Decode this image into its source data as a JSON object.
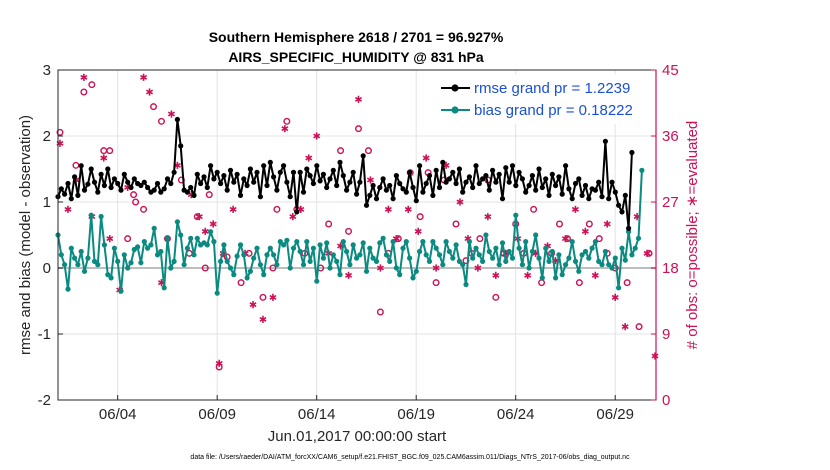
{
  "chart_data": {
    "type": "line",
    "title": "Southern Hemisphere 2618 / 2701 = 96.927%",
    "subtitle": "AIRS_SPECIFIC_HUMIDITY @ 831 hPa",
    "xlabel": "Jun.01,2017 00:00:00 start",
    "ylabel": "rmse and bias (model - observation)",
    "ylabel_right": "# of obs: o=possible; ∗=evaluated",
    "xlim": [
      1.0,
      31.05
    ],
    "ylim": [
      -2,
      3
    ],
    "ylim_right": [
      0,
      45
    ],
    "x_ticks": [
      {
        "value": 4,
        "label": "06/04"
      },
      {
        "value": 9,
        "label": "06/09"
      },
      {
        "value": 14,
        "label": "06/14"
      },
      {
        "value": 19,
        "label": "06/19"
      },
      {
        "value": 24,
        "label": "06/24"
      },
      {
        "value": 29,
        "label": "06/29"
      }
    ],
    "y_ticks": [
      {
        "value": -2,
        "label": "-2"
      },
      {
        "value": -1,
        "label": "-1"
      },
      {
        "value": 0,
        "label": "0"
      },
      {
        "value": 1,
        "label": "1"
      },
      {
        "value": 2,
        "label": "2"
      },
      {
        "value": 3,
        "label": "3"
      }
    ],
    "y_ticks_right": [
      {
        "value": 0,
        "label": "0"
      },
      {
        "value": 9,
        "label": "9"
      },
      {
        "value": 18,
        "label": "18"
      },
      {
        "value": 27,
        "label": "27"
      },
      {
        "value": 36,
        "label": "36"
      },
      {
        "value": 45,
        "label": "45"
      }
    ],
    "legend_position": "top-right",
    "series": [
      {
        "name": "rmse grand pr = 1.2239",
        "color": "#000000",
        "values": [
          1.08,
          1.2,
          1.12,
          1.28,
          1.05,
          1.38,
          1.1,
          1.55,
          1.18,
          1.27,
          1.5,
          1.3,
          1.15,
          1.42,
          1.25,
          1.5,
          1.22,
          1.35,
          1.28,
          1.18,
          1.42,
          1.3,
          1.22,
          1.35,
          1.28,
          1.25,
          1.3,
          1.22,
          1.15,
          1.18,
          1.28,
          1.15,
          1.2,
          1.35,
          1.28,
          1.45,
          2.25,
          1.85,
          1.18,
          1.15,
          1.22,
          1.1,
          1.42,
          1.28,
          1.38,
          1.22,
          1.55,
          1.35,
          1.45,
          1.28,
          1.4,
          1.18,
          1.48,
          1.3,
          1.42,
          1.1,
          1.35,
          1.25,
          1.5,
          1.3,
          1.45,
          1.08,
          1.55,
          1.25,
          1.6,
          1.38,
          1.18,
          1.45,
          1.55,
          1.3,
          1.08,
          1.45,
          0.85,
          1.45,
          1.15,
          1.5,
          1.4,
          1.28,
          1.55,
          1.32,
          1.42,
          1.22,
          1.35,
          1.48,
          1.25,
          1.6,
          1.4,
          1.18,
          1.3,
          1.45,
          1.12,
          1.3,
          1.7,
          0.95,
          1.1,
          1.25,
          1.05,
          1.22,
          1.35,
          1.18,
          1.25,
          1.05,
          1.4,
          1.28,
          1.2,
          1.15,
          1.45,
          1.22,
          1.02,
          1.55,
          1.15,
          1.28,
          1.4,
          1.1,
          1.48,
          1.22,
          1.6,
          1.3,
          1.35,
          1.45,
          1.28,
          1.5,
          1.15,
          1.3,
          1.38,
          1.22,
          1.55,
          1.28,
          1.35,
          1.4,
          1.18,
          1.48,
          1.3,
          1.42,
          1.05,
          1.52,
          1.3,
          1.55,
          1.25,
          1.45,
          1.35,
          1.15,
          1.25,
          1.4,
          1.18,
          1.5,
          1.22,
          1.35,
          1.1,
          1.42,
          1.25,
          1.38,
          1.12,
          1.55,
          1.2,
          1.05,
          1.28,
          1.35,
          1.1,
          1.25,
          1.05,
          1.2,
          1.18,
          1.3,
          1.08,
          1.92,
          1.05,
          1.3,
          1.15,
          0.95,
          0.85,
          1.1,
          0.6,
          1.75
        ],
        "start_x": 1.0,
        "step": 0.1667
      },
      {
        "name": "bias grand pr = 0.18222",
        "color": "#0a8a80",
        "values": [
          0.5,
          0.2,
          0.05,
          -0.32,
          0.3,
          0.15,
          0.05,
          0.25,
          -0.05,
          0.15,
          0.8,
          0.1,
          0.05,
          0.78,
          0.35,
          -0.1,
          -0.15,
          0.3,
          0.1,
          -0.35,
          0.2,
          0.0,
          0.08,
          0.28,
          0.32,
          0.08,
          0.4,
          0.3,
          0.35,
          0.6,
          0.2,
          0.25,
          -0.3,
          0.45,
          0.0,
          0.1,
          0.7,
          0.5,
          0.05,
          0.3,
          0.45,
          0.2,
          0.45,
          0.35,
          0.38,
          0.35,
          0.55,
          0.4,
          -0.38,
          0.1,
          0.35,
          0.1,
          0.0,
          -0.1,
          0.18,
          0.35,
          0.2,
          -0.15,
          -0.05,
          0.15,
          0.3,
          0.05,
          -0.1,
          0.2,
          0.3,
          0.2,
          0.05,
          0.4,
          0.35,
          0.42,
          0.0,
          0.3,
          0.4,
          0.25,
          0.05,
          0.4,
          0.1,
          0.3,
          -0.2,
          0.35,
          0.15,
          0.38,
          0.0,
          0.2,
          0.1,
          -0.1,
          0.4,
          0.25,
          0.05,
          0.35,
          0.15,
          0.2,
          0.38,
          -0.05,
          0.3,
          0.15,
          0.1,
          0.38,
          0.45,
          0.2,
          0.1,
          0.4,
          0.0,
          -0.1,
          0.3,
          0.4,
          0.15,
          -0.15,
          -0.05,
          0.25,
          0.4,
          0.2,
          0.1,
          0.4,
          0.3,
          0.2,
          0.05,
          0.4,
          0.25,
          0.15,
          0.35,
          0.1,
          0.05,
          -0.25,
          0.4,
          0.15,
          0.3,
          0.2,
          0.1,
          0.5,
          0.25,
          0.15,
          0.3,
          0.05,
          0.38,
          0.1,
          0.25,
          0.15,
          0.8,
          0.3,
          0.05,
          0.4,
          0.0,
          0.25,
          0.5,
          0.15,
          -0.15,
          0.3,
          0.1,
          0.25,
          -0.15,
          0.2,
          -0.1,
          0.05,
          0.15,
          0.4,
          0.1,
          -0.05,
          0.2,
          0.25,
          0.15,
          0.3,
          0.4,
          0.1,
          0.05,
          0.25,
          0.05,
          0.0,
          0.15,
          -0.3,
          0.3,
          0.12,
          0.55,
          0.2,
          0.3,
          0.45,
          1.48
        ],
        "start_x": 1.0,
        "step": 0.1667
      }
    ],
    "obs_possible": [
      [
        1.1,
        36.5
      ],
      [
        1.9,
        32
      ],
      [
        2.3,
        42
      ],
      [
        2.7,
        43
      ],
      [
        3.3,
        34
      ],
      [
        3.6,
        34
      ],
      [
        4.5,
        22
      ],
      [
        4.8,
        28
      ],
      [
        4.9,
        27
      ],
      [
        5.3,
        26
      ],
      [
        5.8,
        40
      ],
      [
        6.2,
        38
      ],
      [
        6.5,
        22
      ],
      [
        7.2,
        30
      ],
      [
        7.6,
        20
      ],
      [
        8.0,
        25
      ],
      [
        8.4,
        18
      ],
      [
        8.6,
        28
      ],
      [
        9.1,
        4.5
      ],
      [
        9.5,
        19.5
      ],
      [
        10.2,
        16
      ],
      [
        10.6,
        20
      ],
      [
        11.3,
        14
      ],
      [
        11.8,
        18
      ],
      [
        12.0,
        26
      ],
      [
        12.5,
        38
      ],
      [
        13.0,
        26
      ],
      [
        13.4,
        20
      ],
      [
        14.2,
        18
      ],
      [
        14.6,
        24
      ],
      [
        15.2,
        34
      ],
      [
        15.6,
        23
      ],
      [
        16.1,
        37
      ],
      [
        16.6,
        34
      ],
      [
        17.2,
        12
      ],
      [
        17.6,
        20
      ],
      [
        18.1,
        22
      ],
      [
        18.7,
        31
      ],
      [
        19.2,
        25
      ],
      [
        19.6,
        31
      ],
      [
        20.0,
        16
      ],
      [
        20.4,
        30
      ],
      [
        21.0,
        24
      ],
      [
        21.5,
        19
      ],
      [
        21.8,
        20
      ],
      [
        22.2,
        22
      ],
      [
        22.6,
        30
      ],
      [
        23.0,
        14
      ],
      [
        23.4,
        20
      ],
      [
        24.0,
        24
      ],
      [
        24.4,
        20
      ],
      [
        24.9,
        26
      ],
      [
        25.3,
        16
      ],
      [
        25.8,
        20
      ],
      [
        26.2,
        24
      ],
      [
        26.6,
        22
      ],
      [
        27.2,
        16
      ],
      [
        27.7,
        24
      ],
      [
        28.2,
        22
      ],
      [
        28.6,
        20
      ],
      [
        29.0,
        18
      ],
      [
        29.6,
        16
      ],
      [
        30.2,
        10
      ],
      [
        30.7,
        20
      ]
    ],
    "obs_evaluated": [
      [
        1.1,
        35
      ],
      [
        1.5,
        26
      ],
      [
        1.9,
        30
      ],
      [
        2.3,
        44
      ],
      [
        2.7,
        25
      ],
      [
        3.3,
        33
      ],
      [
        3.6,
        22
      ],
      [
        4.1,
        15
      ],
      [
        4.5,
        29
      ],
      [
        5.3,
        44
      ],
      [
        5.6,
        42
      ],
      [
        6.2,
        16
      ],
      [
        6.7,
        39
      ],
      [
        7.0,
        32
      ],
      [
        7.7,
        28
      ],
      [
        8.1,
        25
      ],
      [
        8.4,
        23
      ],
      [
        8.8,
        24
      ],
      [
        9.1,
        5
      ],
      [
        9.3,
        20
      ],
      [
        9.8,
        26
      ],
      [
        10.4,
        20
      ],
      [
        10.8,
        13
      ],
      [
        11.3,
        11
      ],
      [
        11.8,
        14
      ],
      [
        12.4,
        37
      ],
      [
        12.8,
        25
      ],
      [
        13.2,
        26
      ],
      [
        13.6,
        33
      ],
      [
        14.0,
        36
      ],
      [
        14.6,
        20
      ],
      [
        15.2,
        21
      ],
      [
        15.6,
        17
      ],
      [
        16.1,
        41
      ],
      [
        16.7,
        30
      ],
      [
        17.2,
        18
      ],
      [
        17.6,
        26
      ],
      [
        18.0,
        22
      ],
      [
        18.6,
        26
      ],
      [
        19.1,
        23
      ],
      [
        19.5,
        33
      ],
      [
        20.0,
        18
      ],
      [
        20.5,
        32
      ],
      [
        21.2,
        27
      ],
      [
        21.6,
        22
      ],
      [
        22.1,
        18
      ],
      [
        22.6,
        25
      ],
      [
        23.0,
        17
      ],
      [
        23.5,
        20
      ],
      [
        24.1,
        22
      ],
      [
        24.6,
        17
      ],
      [
        25.0,
        20
      ],
      [
        25.6,
        21
      ],
      [
        26.0,
        19
      ],
      [
        26.5,
        22
      ],
      [
        27.0,
        26
      ],
      [
        27.5,
        23
      ],
      [
        28.0,
        17
      ],
      [
        28.6,
        24
      ],
      [
        29.0,
        14
      ],
      [
        29.5,
        10
      ],
      [
        30.1,
        25
      ],
      [
        30.6,
        20
      ],
      [
        31.0,
        6
      ]
    ]
  },
  "legend": {
    "rmse_label": "rmse grand pr = 1.2239",
    "bias_label": "bias grand pr = 0.18222"
  },
  "footer": {
    "data_file": "data file: /Users/raeder/DAI/ATM_forcXX/CAM6_setup/f.e21.FHIST_BGC.f09_025.CAM6assim.011/Diags_NTrS_2017-06/obs_diag_output.nc"
  },
  "colors": {
    "rmse": "#000000",
    "bias": "#0a8a80",
    "obs": "#cc1155",
    "zero_line": "#bdbdbd"
  }
}
